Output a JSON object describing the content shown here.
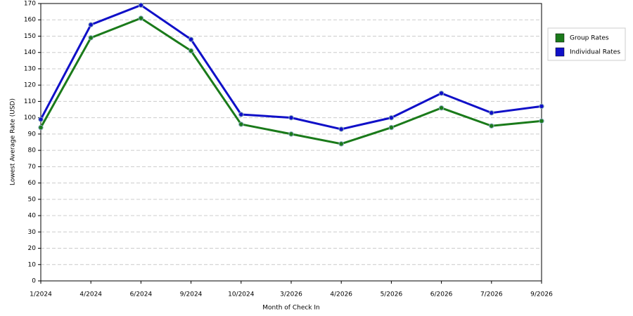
{
  "chart_data": {
    "type": "line",
    "x_label": "Month of Check In",
    "y_label": "Lowest Average Rate (USD)",
    "categories": [
      "1/2024",
      "4/2024",
      "6/2024",
      "9/2024",
      "10/2024",
      "3/2026",
      "4/2026",
      "5/2026",
      "6/2026",
      "7/2026",
      "9/2026"
    ],
    "series": [
      {
        "name": "Group Rates",
        "color": "#1a7a1a",
        "values": [
          94,
          149,
          161,
          141,
          96,
          90,
          84,
          94,
          106,
          95,
          98
        ]
      },
      {
        "name": "Individual Rates",
        "color": "#1010c8",
        "values": [
          99,
          157,
          169,
          148,
          102,
          100,
          93,
          100,
          115,
          103,
          107
        ]
      }
    ],
    "ylim": [
      0,
      170
    ],
    "yticks": [
      0,
      10,
      20,
      30,
      40,
      50,
      60,
      70,
      80,
      90,
      100,
      110,
      120,
      130,
      140,
      150,
      160,
      170
    ],
    "grid": true,
    "legend": "right"
  }
}
